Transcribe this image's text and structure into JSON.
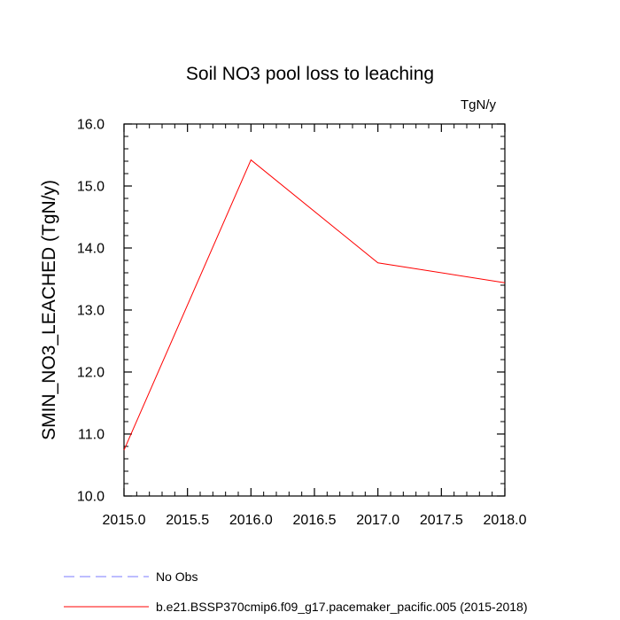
{
  "chart_data": {
    "type": "line",
    "title": "Soil NO3 pool loss to leaching",
    "units": "TgN/y",
    "xlabel": "",
    "ylabel": "SMIN_NO3_LEACHED  (TgN/y)",
    "xlim": [
      2015.0,
      2018.0
    ],
    "ylim": [
      10.0,
      16.0
    ],
    "x_ticks": [
      "2015.0",
      "2015.5",
      "2016.0",
      "2016.5",
      "2017.0",
      "2017.5",
      "2018.0"
    ],
    "y_ticks": [
      "10.0",
      "11.0",
      "12.0",
      "13.0",
      "14.0",
      "15.0",
      "16.0"
    ],
    "grid": false,
    "legend_position": "bottom-left",
    "series": [
      {
        "name": "b.e21.BSSP370cmip6.f09_g17.pacemaker_pacific.005 (2015-2018)",
        "color": "#ff0000",
        "dash": "solid",
        "x": [
          2015.0,
          2016.0,
          2017.0,
          2018.0
        ],
        "y": [
          10.74,
          15.42,
          13.76,
          13.44
        ]
      }
    ],
    "legend": [
      {
        "label": "No Obs",
        "color": "#7b7bff",
        "dash": "dashed"
      },
      {
        "label": "b.e21.BSSP370cmip6.f09_g17.pacemaker_pacific.005 (2015-2018)",
        "color": "#ff0000",
        "dash": "solid"
      }
    ]
  }
}
